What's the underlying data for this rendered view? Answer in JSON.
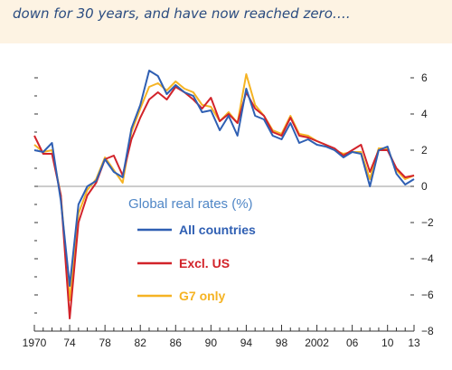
{
  "caption": "down for 30 years, and have now reached zero….",
  "chart_data": {
    "type": "line",
    "legend_title": "Global real rates (%)",
    "legend_placement": "center-left",
    "x": [
      1970,
      1971,
      1972,
      1973,
      1974,
      1975,
      1976,
      1977,
      1978,
      1979,
      1980,
      1981,
      1982,
      1983,
      1984,
      1985,
      1986,
      1987,
      1988,
      1989,
      1990,
      1991,
      1992,
      1993,
      1994,
      1995,
      1996,
      1997,
      1998,
      1999,
      2000,
      2001,
      2002,
      2003,
      2004,
      2005,
      2006,
      2007,
      2008,
      2009,
      2010,
      2011,
      2012,
      2013
    ],
    "x_tick_values": [
      1970,
      1974,
      1978,
      1982,
      1986,
      1990,
      1994,
      1998,
      2002,
      2006,
      2010,
      2013
    ],
    "x_tick_labels": [
      "1970",
      "74",
      "78",
      "82",
      "86",
      "90",
      "94",
      "98",
      "2002",
      "06",
      "10",
      "13"
    ],
    "ylim": [
      -8,
      7
    ],
    "y_tick_values": [
      6,
      4,
      2,
      0,
      -2,
      -4,
      -6,
      -8
    ],
    "y_tick_labels": [
      "6",
      "4",
      "2",
      "0",
      "−2",
      "−4",
      "−6",
      "−8"
    ],
    "zero_line": true,
    "series": [
      {
        "name": "All countries",
        "color": "#2f5fb3",
        "values": [
          2.0,
          1.9,
          2.4,
          -0.8,
          -5.5,
          -1.0,
          0.0,
          0.3,
          1.5,
          0.8,
          0.5,
          3.2,
          4.5,
          6.4,
          6.1,
          5.1,
          5.6,
          5.2,
          5.0,
          4.1,
          4.2,
          3.1,
          3.9,
          2.8,
          5.4,
          3.9,
          3.7,
          2.8,
          2.6,
          3.5,
          2.4,
          2.6,
          2.3,
          2.2,
          2.0,
          1.6,
          1.9,
          1.8,
          0.0,
          2.0,
          2.2,
          0.7,
          0.1,
          0.4
        ]
      },
      {
        "name": "Excl. US",
        "color": "#d2232a",
        "values": [
          2.8,
          1.8,
          1.8,
          -0.5,
          -7.3,
          -2.0,
          -0.5,
          0.2,
          1.5,
          1.7,
          0.6,
          2.6,
          3.8,
          4.8,
          5.2,
          4.8,
          5.5,
          5.2,
          4.8,
          4.3,
          4.9,
          3.6,
          4.0,
          3.5,
          5.2,
          4.3,
          3.9,
          3.0,
          2.8,
          3.8,
          2.8,
          2.7,
          2.5,
          2.3,
          2.1,
          1.7,
          2.0,
          2.3,
          0.8,
          2.0,
          2.0,
          1.0,
          0.5,
          0.6
        ]
      },
      {
        "name": "G7 only",
        "color": "#f5b323",
        "values": [
          2.3,
          1.9,
          2.0,
          -0.5,
          -6.3,
          -1.5,
          -0.2,
          0.4,
          1.6,
          0.9,
          0.2,
          3.0,
          4.3,
          5.5,
          5.7,
          5.3,
          5.8,
          5.4,
          5.2,
          4.5,
          4.4,
          3.6,
          4.1,
          3.5,
          6.2,
          4.5,
          3.9,
          3.1,
          2.9,
          3.9,
          2.9,
          2.8,
          2.5,
          2.3,
          2.0,
          1.8,
          1.9,
          1.9,
          0.4,
          2.1,
          2.1,
          0.9,
          0.4,
          0.6
        ]
      }
    ]
  }
}
